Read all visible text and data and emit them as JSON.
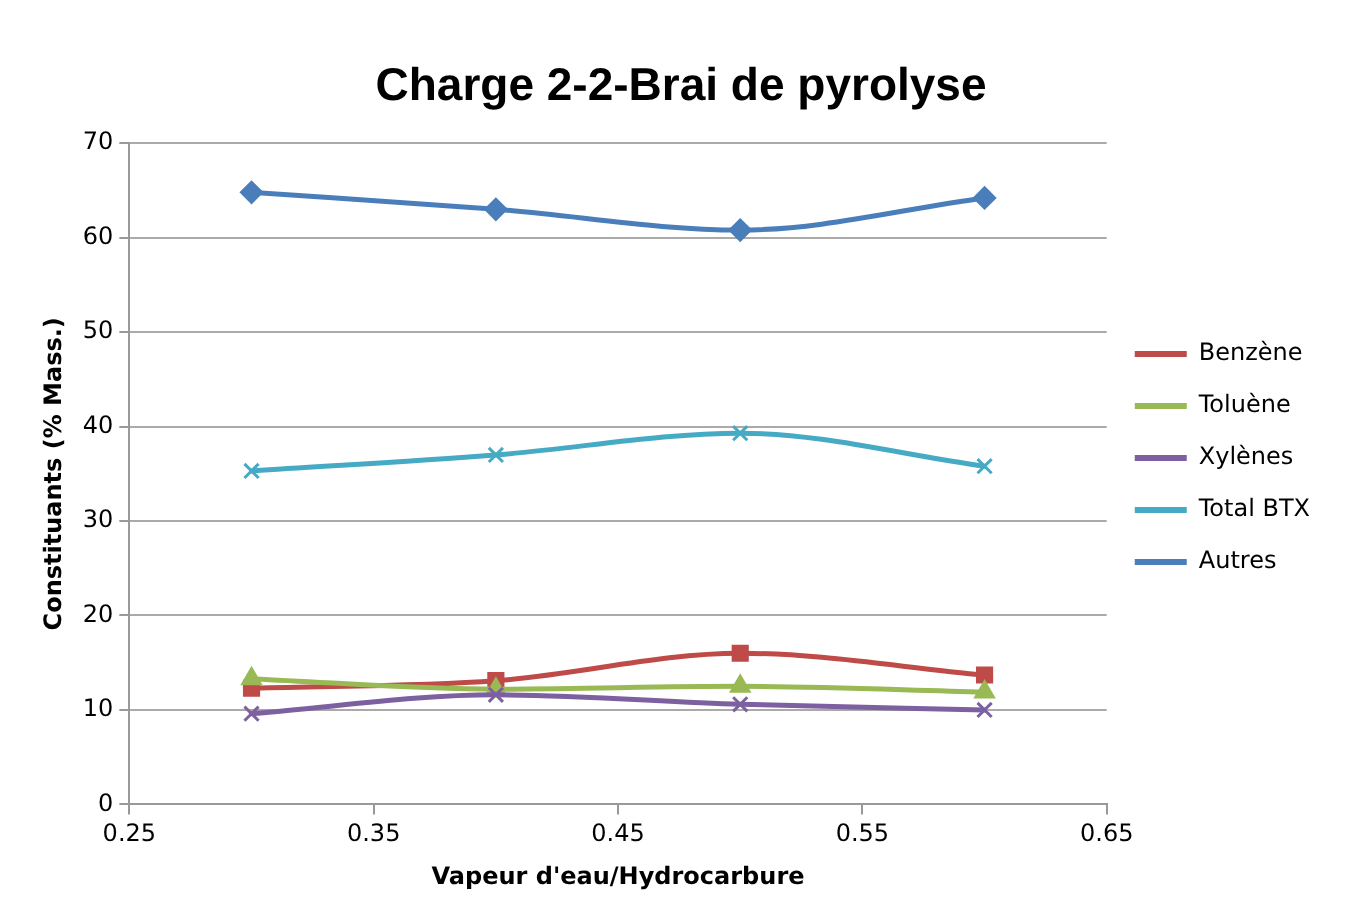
{
  "chart_data": {
    "type": "line",
    "title": "Charge 2-2-Brai de pyrolyse",
    "xlabel": "Vapeur d'eau/Hydrocarbure",
    "ylabel": "Constituants (% Mass.)",
    "x": [
      0.3,
      0.4,
      0.5,
      0.6
    ],
    "series": [
      {
        "name": "Benzène",
        "color": "#be4b48",
        "marker": "square",
        "values": [
          12.3,
          13.1,
          16.0,
          13.7
        ]
      },
      {
        "name": "Toluène",
        "color": "#98b954",
        "marker": "triangle",
        "values": [
          13.3,
          12.2,
          12.5,
          11.9
        ]
      },
      {
        "name": "Xylènes",
        "color": "#7d60a0",
        "marker": "cross",
        "values": [
          9.6,
          11.6,
          10.6,
          10.0
        ]
      },
      {
        "name": "Total BTX",
        "color": "#46aac5",
        "marker": "cross",
        "values": [
          35.3,
          37.0,
          39.3,
          35.8
        ]
      },
      {
        "name": "Autres",
        "color": "#4a7ebb",
        "marker": "diamond",
        "values": [
          64.8,
          63.0,
          60.8,
          64.2
        ]
      }
    ],
    "xlim": [
      0.25,
      0.65
    ],
    "xticks": [
      0.25,
      0.35,
      0.45,
      0.55,
      0.65
    ],
    "ylim": [
      0,
      70
    ],
    "yticks": [
      0,
      10,
      20,
      30,
      40,
      50,
      60,
      70
    ],
    "grid": "y",
    "legend": "right"
  }
}
